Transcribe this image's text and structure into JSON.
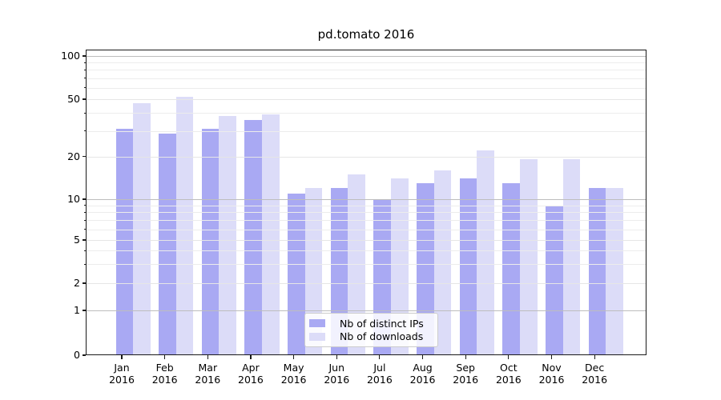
{
  "title": "pd.tomato 2016",
  "chart_data": {
    "type": "bar",
    "title": "pd.tomato 2016",
    "categories": [
      "Jan",
      "Feb",
      "Mar",
      "Apr",
      "May",
      "Jun",
      "Jul",
      "Aug",
      "Sep",
      "Oct",
      "Nov",
      "Dec"
    ],
    "category_year": "2016",
    "series": [
      {
        "name": "Nb of distinct IPs",
        "color": "#a9a9f3",
        "values": [
          31,
          29,
          31,
          36,
          11,
          12,
          10,
          13,
          14,
          13,
          9,
          12
        ]
      },
      {
        "name": "Nb of downloads",
        "color": "#dcdcf8",
        "values": [
          47,
          52,
          38,
          39,
          12,
          15,
          14,
          16,
          22,
          19,
          19,
          12
        ]
      }
    ],
    "yscale": "symlog",
    "yticks": [
      0,
      1,
      2,
      5,
      10,
      20,
      50,
      100
    ],
    "ylim": [
      0,
      115
    ],
    "grid": true,
    "legend_position": "lower-center"
  },
  "legend": {
    "items": [
      {
        "label": "Nb of distinct IPs",
        "color": "#a9a9f3"
      },
      {
        "label": "Nb of downloads",
        "color": "#dcdcf8"
      }
    ]
  },
  "colors": {
    "bar_dark": "#a9a9f3",
    "bar_light": "#dcdcf8",
    "grid_major": "#bdbdbd",
    "grid_minor": "#ececec",
    "grid_tick": "#e6e6e6",
    "axis": "#1a1a1a"
  }
}
